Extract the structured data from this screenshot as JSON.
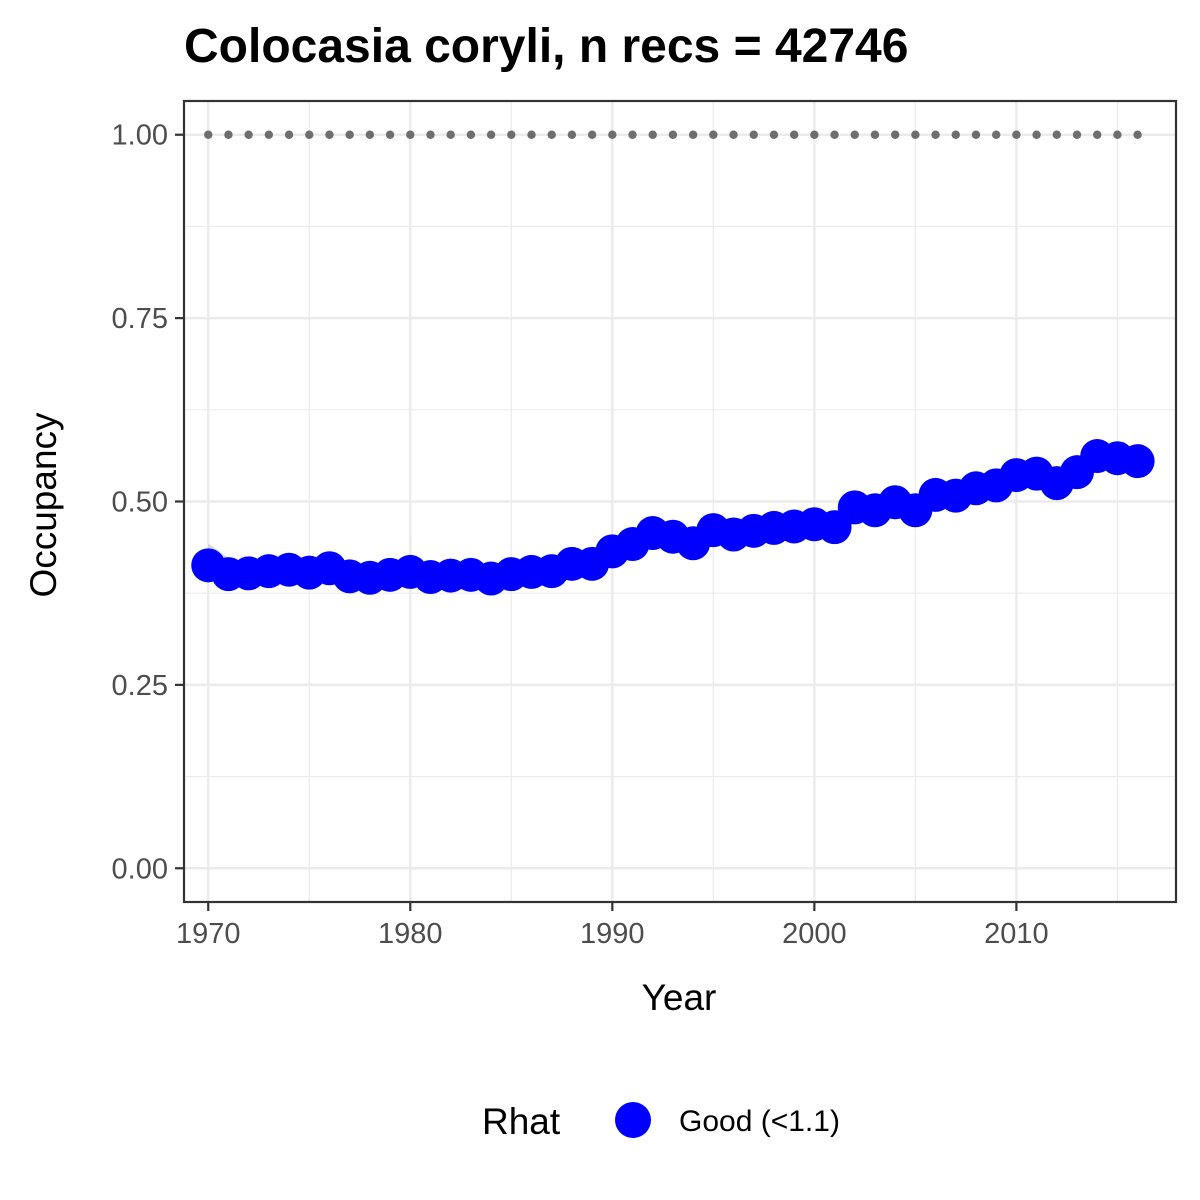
{
  "chart_data": {
    "type": "scatter",
    "title": "Colocasia coryli, n recs = 42746",
    "xlabel": "Year",
    "ylabel": "Occupancy",
    "xlim": [
      1968.8,
      2017.9
    ],
    "ylim": [
      -0.046,
      1.046
    ],
    "x_ticks": [
      1970,
      1980,
      1990,
      2000,
      2010
    ],
    "x_tick_labels": [
      "1970",
      "1980",
      "1990",
      "2000",
      "2010"
    ],
    "y_ticks": [
      0,
      0.25,
      0.5,
      0.75,
      1.0
    ],
    "y_tick_labels": [
      "0.00",
      "0.25",
      "0.50",
      "0.75",
      "1.00"
    ],
    "grid": true,
    "legend_position": "bottom",
    "legend_title": "Rhat",
    "colors": {
      "points": "#0000ff",
      "reference": "#6e6e6e",
      "ribbon": "#bebebe",
      "grid": "#ebebeb",
      "frame": "#333333"
    },
    "series": [
      {
        "name": "Good (<1.1)",
        "x": [
          1970,
          1971,
          1972,
          1973,
          1974,
          1975,
          1976,
          1977,
          1978,
          1979,
          1980,
          1981,
          1982,
          1983,
          1984,
          1985,
          1986,
          1987,
          1988,
          1989,
          1990,
          1991,
          1992,
          1993,
          1994,
          1995,
          1996,
          1997,
          1998,
          1999,
          2000,
          2001,
          2002,
          2003,
          2004,
          2005,
          2006,
          2007,
          2008,
          2009,
          2010,
          2011,
          2012,
          2013,
          2014,
          2015,
          2016
        ],
        "y": [
          0.413,
          0.401,
          0.402,
          0.405,
          0.407,
          0.403,
          0.409,
          0.398,
          0.396,
          0.4,
          0.404,
          0.397,
          0.399,
          0.4,
          0.395,
          0.401,
          0.404,
          0.405,
          0.415,
          0.415,
          0.432,
          0.442,
          0.457,
          0.452,
          0.443,
          0.461,
          0.455,
          0.46,
          0.464,
          0.466,
          0.469,
          0.465,
          0.492,
          0.488,
          0.499,
          0.488,
          0.509,
          0.508,
          0.518,
          0.522,
          0.536,
          0.538,
          0.525,
          0.54,
          0.562,
          0.559,
          0.555
        ],
        "lower": [
          0.4,
          0.387,
          0.388,
          0.392,
          0.395,
          0.391,
          0.397,
          0.386,
          0.384,
          0.388,
          0.392,
          0.385,
          0.387,
          0.388,
          0.383,
          0.389,
          0.392,
          0.393,
          0.403,
          0.403,
          0.42,
          0.43,
          0.445,
          0.44,
          0.431,
          0.449,
          0.443,
          0.448,
          0.452,
          0.454,
          0.457,
          0.453,
          0.48,
          0.476,
          0.487,
          0.476,
          0.497,
          0.496,
          0.506,
          0.51,
          0.524,
          0.526,
          0.513,
          0.528,
          0.55,
          0.547,
          0.543
        ],
        "upper": [
          0.443,
          0.423,
          0.417,
          0.418,
          0.419,
          0.415,
          0.421,
          0.41,
          0.408,
          0.412,
          0.416,
          0.409,
          0.411,
          0.412,
          0.407,
          0.413,
          0.416,
          0.417,
          0.427,
          0.427,
          0.444,
          0.454,
          0.469,
          0.464,
          0.455,
          0.473,
          0.467,
          0.472,
          0.476,
          0.478,
          0.481,
          0.477,
          0.504,
          0.5,
          0.511,
          0.5,
          0.521,
          0.52,
          0.53,
          0.534,
          0.548,
          0.55,
          0.537,
          0.552,
          0.574,
          0.571,
          0.567
        ]
      },
      {
        "x": [
          1970,
          1971,
          1972,
          1973,
          1974,
          1975,
          1976,
          1977,
          1978,
          1979,
          1980,
          1981,
          1982,
          1983,
          1984,
          1985,
          1986,
          1987,
          1988,
          1989,
          1990,
          1991,
          1992,
          1993,
          1994,
          1995,
          1996,
          1997,
          1998,
          1999,
          2000,
          2001,
          2002,
          2003,
          2004,
          2005,
          2006,
          2007,
          2008,
          2009,
          2010,
          2011,
          2012,
          2013,
          2014,
          2015,
          2016
        ],
        "y": [
          1,
          1,
          1,
          1,
          1,
          1,
          1,
          1,
          1,
          1,
          1,
          1,
          1,
          1,
          1,
          1,
          1,
          1,
          1,
          1,
          1,
          1,
          1,
          1,
          1,
          1,
          1,
          1,
          1,
          1,
          1,
          1,
          1,
          1,
          1,
          1,
          1,
          1,
          1,
          1,
          1,
          1,
          1,
          1,
          1,
          1,
          1
        ]
      }
    ]
  }
}
